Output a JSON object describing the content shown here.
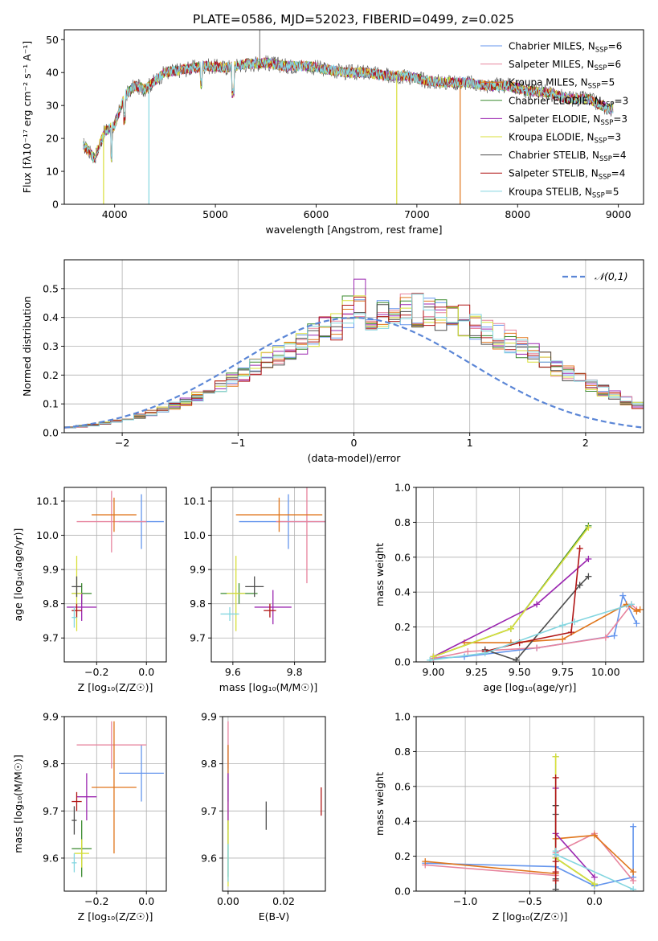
{
  "title": "PLATE=0586, MJD=52023, FIBERID=0499, z=0.025",
  "colors": {
    "chabrier_miles": "#6495ED",
    "salpeter_miles": "#E7849E",
    "kroupa_miles": "#E0761C",
    "chabrier_elodie": "#3A8A2E",
    "salpeter_elodie": "#9B27B0",
    "kroupa_elodie": "#D8DF3A",
    "chabrier_stelib": "#4D4D4D",
    "salpeter_stelib": "#B01515",
    "kroupa_stelib": "#84D6E0"
  },
  "chart_data": [
    {
      "id": "spectrum",
      "type": "line",
      "xlabel": "wavelength [Angstrom, rest frame]",
      "ylabel": "Flux [fλ10⁻¹⁷ erg cm⁻² s⁻¹ A⁻¹]",
      "xlim": [
        3500,
        9250
      ],
      "ylim": [
        0,
        53
      ],
      "xticks": [
        "4000",
        "5000",
        "6000",
        "7000",
        "8000",
        "9000"
      ],
      "yticks": [
        "0",
        "10",
        "20",
        "30",
        "40",
        "50"
      ],
      "grid": false,
      "legend_position": "top-right",
      "legend": [
        {
          "base": "Chabrier MILES, N",
          "sub": "SSP",
          "tail": "=6",
          "color": "#6495ED"
        },
        {
          "base": "Salpeter MILES, N",
          "sub": "SSP",
          "tail": "=6",
          "color": "#E7849E"
        },
        {
          "base": "Kroupa MILES, N",
          "sub": "SSP",
          "tail": "=5",
          "color": "#E0761C"
        },
        {
          "base": "Chabrier ELODIE, N",
          "sub": "SSP",
          "tail": "=3",
          "color": "#3A8A2E"
        },
        {
          "base": "Salpeter ELODIE, N",
          "sub": "SSP",
          "tail": "=3",
          "color": "#9B27B0"
        },
        {
          "base": "Kroupa ELODIE, N",
          "sub": "SSP",
          "tail": "=3",
          "color": "#D8DF3A"
        },
        {
          "base": "Chabrier STELIB, N",
          "sub": "SSP",
          "tail": "=4",
          "color": "#4D4D4D"
        },
        {
          "base": "Salpeter STELIB, N",
          "sub": "SSP",
          "tail": "=4",
          "color": "#B01515"
        },
        {
          "base": "Kroupa STELIB, N",
          "sub": "SSP",
          "tail": "=5",
          "color": "#84D6E0"
        }
      ],
      "continuum": [
        [
          3690,
          18
        ],
        [
          3800,
          14
        ],
        [
          3900,
          22
        ],
        [
          4000,
          24
        ],
        [
          4100,
          33
        ],
        [
          4200,
          36
        ],
        [
          4300,
          35
        ],
        [
          4500,
          40
        ],
        [
          4700,
          41
        ],
        [
          4900,
          42
        ],
        [
          5100,
          41.5
        ],
        [
          5300,
          42.5
        ],
        [
          5500,
          43
        ],
        [
          5700,
          42
        ],
        [
          5900,
          42
        ],
        [
          6100,
          41
        ],
        [
          6300,
          40
        ],
        [
          6500,
          40
        ],
        [
          6700,
          39
        ],
        [
          6900,
          39
        ],
        [
          7100,
          37.5
        ],
        [
          7300,
          37
        ],
        [
          7500,
          37
        ],
        [
          7700,
          36
        ],
        [
          7900,
          36
        ],
        [
          8100,
          34.5
        ],
        [
          8300,
          34
        ],
        [
          8500,
          32
        ],
        [
          8700,
          32
        ],
        [
          8900,
          29
        ]
      ],
      "dips": [
        {
          "x": 3890,
          "y": 0,
          "color": "#D8DF3A"
        },
        {
          "x": 4340,
          "y": 0,
          "color": "#84D6E0"
        },
        {
          "x": 6800,
          "y": 0,
          "color": "#D8DF3A"
        },
        {
          "x": 7430,
          "y": 0,
          "color": "#E0761C"
        }
      ],
      "spike": {
        "x": 5440,
        "y": 53
      }
    },
    {
      "id": "residuals",
      "type": "histogram",
      "xlabel": "(data-model)/error",
      "ylabel": "Normed distribution",
      "xlim": [
        -2.5,
        2.5
      ],
      "ylim": [
        0,
        0.6
      ],
      "xticks": [
        "−2",
        "−1",
        "0",
        "1",
        "2"
      ],
      "yticks": [
        "0.0",
        "0.1",
        "0.2",
        "0.3",
        "0.4",
        "0.5"
      ],
      "grid": true,
      "legend_position": "top-right",
      "legend_label": "𝒩(0,1)",
      "bin_width": 0.1,
      "base_density": [
        0.018,
        0.022,
        0.027,
        0.033,
        0.04,
        0.048,
        0.058,
        0.069,
        0.081,
        0.094,
        0.109,
        0.126,
        0.143,
        0.163,
        0.183,
        0.204,
        0.225,
        0.248,
        0.27,
        0.292,
        0.313,
        0.334,
        0.353,
        0.371,
        0.386,
        0.399,
        0.41,
        0.418,
        0.423,
        0.425,
        0.424,
        0.42,
        0.413,
        0.402,
        0.389,
        0.373,
        0.355,
        0.336,
        0.315,
        0.293,
        0.271,
        0.249,
        0.226,
        0.204,
        0.183,
        0.163,
        0.145,
        0.128,
        0.111,
        0.096,
        0.082,
        0.07,
        0.059,
        0.049,
        0.041,
        0.033,
        0.027,
        0.022,
        0.018,
        0.015
      ],
      "series_names": [
        "chabrier_miles",
        "salpeter_miles",
        "kroupa_miles",
        "chabrier_elodie",
        "salpeter_elodie",
        "kroupa_elodie",
        "chabrier_stelib",
        "salpeter_stelib",
        "kroupa_stelib"
      ]
    },
    {
      "id": "age-vs-Z",
      "type": "scatter-errorbar",
      "xlabel": "Z [log₁₀(Z/Z☉)]",
      "ylabel": "age  [log₁₀(age/yr)]",
      "xlim": [
        -0.33,
        0.08
      ],
      "ylim": [
        9.63,
        10.14
      ],
      "xticks": [
        "−0.2",
        "0.0"
      ],
      "yticks": [
        "9.7",
        "9.8",
        "9.9",
        "10.0",
        "10.1"
      ],
      "grid": true,
      "points": [
        {
          "x": -0.02,
          "y": 10.04,
          "xerr": 0.09,
          "yerr": 0.08,
          "color": "#6495ED"
        },
        {
          "x": -0.14,
          "y": 10.04,
          "xerr": 0.14,
          "yerr": 0.09,
          "color": "#E7849E"
        },
        {
          "x": -0.13,
          "y": 10.06,
          "xerr": 0.09,
          "yerr": 0.05,
          "color": "#E0761C"
        },
        {
          "x": -0.26,
          "y": 9.83,
          "xerr": 0.04,
          "yerr": 0.03,
          "color": "#3A8A2E"
        },
        {
          "x": -0.26,
          "y": 9.79,
          "xerr": 0.06,
          "yerr": 0.04,
          "color": "#9B27B0"
        },
        {
          "x": -0.28,
          "y": 9.83,
          "xerr": 0.02,
          "yerr": 0.11,
          "color": "#D8DF3A"
        },
        {
          "x": -0.28,
          "y": 9.85,
          "xerr": 0.02,
          "yerr": 0.03,
          "color": "#4D4D4D"
        },
        {
          "x": -0.28,
          "y": 9.78,
          "xerr": 0.02,
          "yerr": 0.02,
          "color": "#B01515"
        },
        {
          "x": -0.29,
          "y": 9.76,
          "xerr": 0.01,
          "yerr": 0.03,
          "color": "#84D6E0"
        }
      ]
    },
    {
      "id": "age-vs-mass",
      "type": "scatter-errorbar",
      "xlabel": "mass [log₁₀(M/M☉)]",
      "ylabel": "",
      "xlim": [
        9.53,
        9.9
      ],
      "ylim": [
        9.63,
        10.14
      ],
      "xticks": [
        "9.6",
        "9.8"
      ],
      "yticks": [
        "9.7",
        "9.8",
        "9.9",
        "10.0",
        "10.1"
      ],
      "grid": true,
      "points": [
        {
          "x": 9.78,
          "y": 10.04,
          "xerr": 0.16,
          "yerr": 0.08,
          "color": "#6495ED"
        },
        {
          "x": 9.84,
          "y": 10.04,
          "xerr": 0.1,
          "yerr": 0.18,
          "color": "#E7849E"
        },
        {
          "x": 9.75,
          "y": 10.06,
          "xerr": 0.14,
          "yerr": 0.05,
          "color": "#E0761C"
        },
        {
          "x": 9.62,
          "y": 9.83,
          "xerr": 0.06,
          "yerr": 0.03,
          "color": "#3A8A2E"
        },
        {
          "x": 9.73,
          "y": 9.79,
          "xerr": 0.06,
          "yerr": 0.05,
          "color": "#9B27B0"
        },
        {
          "x": 9.61,
          "y": 9.83,
          "xerr": 0.03,
          "yerr": 0.11,
          "color": "#D8DF3A"
        },
        {
          "x": 9.67,
          "y": 9.85,
          "xerr": 0.03,
          "yerr": 0.03,
          "color": "#4D4D4D"
        },
        {
          "x": 9.72,
          "y": 9.78,
          "xerr": 0.02,
          "yerr": 0.02,
          "color": "#B01515"
        },
        {
          "x": 9.59,
          "y": 9.77,
          "xerr": 0.03,
          "yerr": 0.02,
          "color": "#84D6E0"
        }
      ]
    },
    {
      "id": "weight-vs-age",
      "type": "line",
      "xlabel": "age  [log₁₀(age/yr)]",
      "ylabel": "mass weight",
      "xlim": [
        8.9,
        10.22
      ],
      "ylim": [
        0,
        1.0
      ],
      "xticks": [
        "9.00",
        "9.25",
        "9.50",
        "9.75",
        "10.00"
      ],
      "yticks": [
        "0.0",
        "0.2",
        "0.4",
        "0.6",
        "0.8",
        "1.0"
      ],
      "grid": true,
      "series": [
        {
          "color": "#6495ED",
          "x": [
            9.0,
            9.18,
            9.6,
            10.05,
            10.1,
            10.18
          ],
          "y": [
            0.02,
            0.03,
            0.08,
            0.15,
            0.38,
            0.22
          ]
        },
        {
          "color": "#E7849E",
          "x": [
            9.0,
            9.2,
            9.6,
            10.0,
            10.15,
            10.18
          ],
          "y": [
            0.02,
            0.06,
            0.08,
            0.14,
            0.33,
            0.3
          ]
        },
        {
          "color": "#E0761C",
          "x": [
            9.18,
            9.45,
            9.75,
            10.12,
            10.18,
            10.2
          ],
          "y": [
            0.11,
            0.11,
            0.13,
            0.33,
            0.29,
            0.3
          ]
        },
        {
          "color": "#3A8A2E",
          "x": [
            9.0,
            9.45,
            9.9
          ],
          "y": [
            0.03,
            0.19,
            0.78
          ]
        },
        {
          "color": "#9B27B0",
          "x": [
            9.0,
            9.6,
            9.9
          ],
          "y": [
            0.03,
            0.33,
            0.59
          ]
        },
        {
          "color": "#D8DF3A",
          "x": [
            9.0,
            9.45,
            9.9
          ],
          "y": [
            0.03,
            0.19,
            0.77
          ]
        },
        {
          "color": "#4D4D4D",
          "x": [
            9.3,
            9.48,
            9.85,
            9.9
          ],
          "y": [
            0.07,
            0.01,
            0.44,
            0.49
          ]
        },
        {
          "color": "#B01515",
          "x": [
            9.3,
            9.5,
            9.8,
            9.85
          ],
          "y": [
            0.06,
            0.11,
            0.17,
            0.65
          ]
        },
        {
          "color": "#84D6E0",
          "x": [
            8.98,
            9.3,
            9.75,
            9.82,
            10.15
          ],
          "y": [
            0.01,
            0.05,
            0.21,
            0.23,
            0.33
          ]
        }
      ]
    },
    {
      "id": "mass-vs-Z",
      "type": "scatter-errorbar",
      "xlabel": "Z [log₁₀(Z/Z☉)]",
      "ylabel": "mass [log₁₀(M/M☉)]",
      "xlim": [
        -0.33,
        0.08
      ],
      "ylim": [
        9.53,
        9.9
      ],
      "xticks": [
        "−0.2",
        "0.0"
      ],
      "yticks": [
        "9.6",
        "9.7",
        "9.8",
        "9.9"
      ],
      "grid": true,
      "points": [
        {
          "x": -0.02,
          "y": 9.78,
          "xerr": 0.09,
          "yerr": 0.06,
          "color": "#6495ED"
        },
        {
          "x": -0.14,
          "y": 9.84,
          "xerr": 0.14,
          "yerr": 0.05,
          "color": "#E7849E"
        },
        {
          "x": -0.13,
          "y": 9.75,
          "xerr": 0.09,
          "yerr": 0.14,
          "color": "#E0761C"
        },
        {
          "x": -0.26,
          "y": 9.62,
          "xerr": 0.04,
          "yerr": 0.06,
          "color": "#3A8A2E"
        },
        {
          "x": -0.24,
          "y": 9.73,
          "xerr": 0.04,
          "yerr": 0.05,
          "color": "#9B27B0"
        },
        {
          "x": -0.26,
          "y": 9.61,
          "xerr": 0.03,
          "yerr": 0.03,
          "color": "#D8DF3A"
        },
        {
          "x": -0.29,
          "y": 9.68,
          "xerr": 0.01,
          "yerr": 0.03,
          "color": "#4D4D4D"
        },
        {
          "x": -0.28,
          "y": 9.72,
          "xerr": 0.02,
          "yerr": 0.02,
          "color": "#B01515"
        },
        {
          "x": -0.29,
          "y": 9.59,
          "xerr": 0.01,
          "yerr": 0.02,
          "color": "#84D6E0"
        }
      ]
    },
    {
      "id": "mass-vs-ebv",
      "type": "scatter-errorbar",
      "xlabel": "E(B-V)",
      "ylabel": "",
      "xlim": [
        -0.002,
        0.035
      ],
      "ylim": [
        9.53,
        9.9
      ],
      "xticks": [
        "0.00",
        "0.02"
      ],
      "yticks": [
        "9.6",
        "9.7",
        "9.8",
        "9.9"
      ],
      "grid": true,
      "points": [
        {
          "x": 0.0,
          "y": 9.78,
          "xerr": 0.0,
          "yerr": 0.06,
          "color": "#6495ED"
        },
        {
          "x": 0.0,
          "y": 9.84,
          "xerr": 0.0,
          "yerr": 0.05,
          "color": "#E7849E"
        },
        {
          "x": 0.0,
          "y": 9.75,
          "xerr": 0.0,
          "yerr": 0.09,
          "color": "#E0761C"
        },
        {
          "x": 0.0,
          "y": 9.62,
          "xerr": 0.0,
          "yerr": 0.06,
          "color": "#3A8A2E"
        },
        {
          "x": 0.0,
          "y": 9.73,
          "xerr": 0.0,
          "yerr": 0.05,
          "color": "#9B27B0"
        },
        {
          "x": 0.0,
          "y": 9.61,
          "xerr": 0.0,
          "yerr": 0.07,
          "color": "#D8DF3A"
        },
        {
          "x": 0.0137,
          "y": 9.69,
          "xerr": 0.0,
          "yerr": 0.03,
          "color": "#4D4D4D"
        },
        {
          "x": 0.0335,
          "y": 9.72,
          "xerr": 0.0,
          "yerr": 0.03,
          "color": "#B01515"
        },
        {
          "x": 0.0,
          "y": 9.59,
          "xerr": 0.0,
          "yerr": 0.04,
          "color": "#84D6E0"
        }
      ]
    },
    {
      "id": "weight-vs-Z",
      "type": "line",
      "xlabel": "Z [log₁₀(Z/Z☉)]",
      "ylabel": "mass weight",
      "xlim": [
        -1.38,
        0.38
      ],
      "ylim": [
        0,
        1.0
      ],
      "xticks": [
        "−1.0",
        "−0.5",
        "0.0"
      ],
      "yticks": [
        "0.0",
        "0.2",
        "0.4",
        "0.6",
        "0.8",
        "1.0"
      ],
      "grid": true,
      "series": [
        {
          "color": "#6495ED",
          "x": [
            -1.31,
            -0.3,
            0.0,
            0.3,
            0.3
          ],
          "y": [
            0.16,
            0.14,
            0.03,
            0.08,
            0.37
          ]
        },
        {
          "color": "#E7849E",
          "x": [
            -1.31,
            -0.3,
            -0.3,
            0.0,
            0.3
          ],
          "y": [
            0.15,
            0.09,
            0.22,
            0.33,
            0.06
          ]
        },
        {
          "color": "#E0761C",
          "x": [
            -1.31,
            -0.3,
            -0.3,
            0.0,
            0.3
          ],
          "y": [
            0.17,
            0.1,
            0.3,
            0.32,
            0.11
          ]
        },
        {
          "color": "#3A8A2E",
          "x": [
            -0.3,
            -0.3,
            0.0
          ],
          "y": [
            0.77,
            0.19,
            0.04
          ]
        },
        {
          "color": "#9B27B0",
          "x": [
            -0.3,
            -0.3,
            0.0
          ],
          "y": [
            0.59,
            0.33,
            0.08
          ]
        },
        {
          "color": "#D8DF3A",
          "x": [
            -0.3,
            -0.3,
            0.0
          ],
          "y": [
            0.77,
            0.19,
            0.04
          ]
        },
        {
          "color": "#4D4D4D",
          "x": [
            -0.3,
            -0.3,
            -0.3,
            -0.3
          ],
          "y": [
            0.49,
            0.44,
            0.07,
            0.01
          ]
        },
        {
          "color": "#B01515",
          "x": [
            -0.3,
            -0.3,
            -0.3,
            -0.3
          ],
          "y": [
            0.65,
            0.17,
            0.11,
            0.06
          ]
        },
        {
          "color": "#84D6E0",
          "x": [
            -0.3,
            -0.3,
            0.3
          ],
          "y": [
            0.23,
            0.21,
            0.01
          ]
        }
      ]
    }
  ]
}
